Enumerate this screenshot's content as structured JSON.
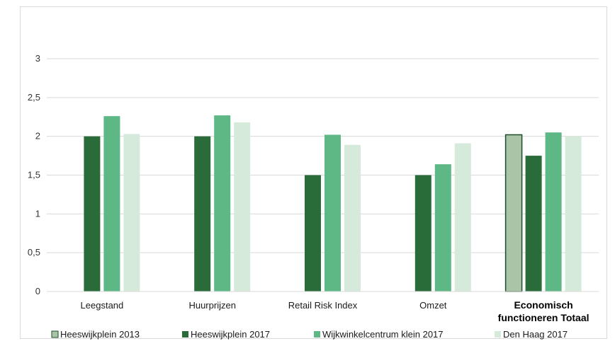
{
  "chart_data": {
    "type": "bar",
    "title": "",
    "xlabel": "",
    "ylabel": "",
    "ylim": [
      0,
      3
    ],
    "yticks": [
      "0",
      "0,5",
      "1",
      "1,5",
      "2",
      "2,5",
      "3"
    ],
    "grid": true,
    "legend_position": "bottom",
    "categories": [
      "Leegstand",
      "Huurprijzen",
      "Retail Risk Index",
      "Omzet",
      "Economisch functioneren Totaal"
    ],
    "category_label_lines": [
      [
        "Leegstand"
      ],
      [
        "Huurprijzen"
      ],
      [
        "Retail Risk Index"
      ],
      [
        "Omzet"
      ],
      [
        "Economisch",
        "functioneren Totaal"
      ]
    ],
    "emphasized_category": 4,
    "series": [
      {
        "name": "Heeswijkplein 2013",
        "color": "#a9c4a7",
        "values": [
          null,
          null,
          null,
          null,
          2.02
        ]
      },
      {
        "name": "Heeswijkplein 2017",
        "color": "#2a6b3a",
        "values": [
          2.0,
          2.0,
          1.5,
          1.5,
          1.75
        ]
      },
      {
        "name": "Wijkwinkelcentrum klein 2017",
        "color": "#5db885",
        "values": [
          2.26,
          2.27,
          2.02,
          1.64,
          2.05
        ]
      },
      {
        "name": "Den Haag 2017",
        "color": "#d6eadb",
        "values": [
          2.03,
          2.18,
          1.89,
          1.91,
          2.0
        ]
      }
    ]
  }
}
